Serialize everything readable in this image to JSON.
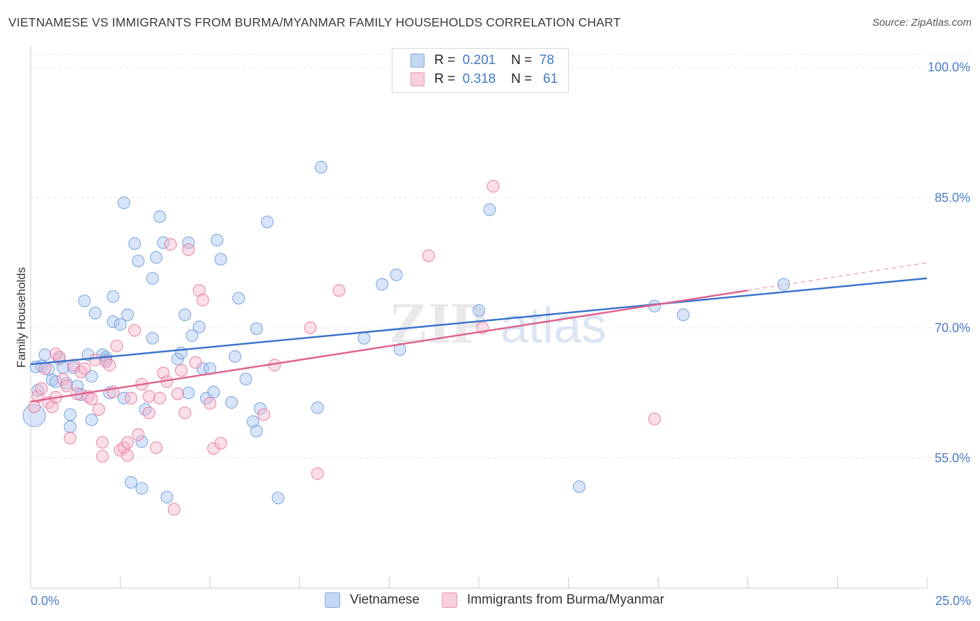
{
  "header": {
    "title": "VIETNAMESE VS IMMIGRANTS FROM BURMA/MYANMAR FAMILY HOUSEHOLDS CORRELATION CHART",
    "source": "Source: ZipAtlas.com"
  },
  "watermark": {
    "zip": "ZIP",
    "atlas": "atlas"
  },
  "legend_box": {
    "rows": [
      {
        "r_label": "R =",
        "r_value": "0.201",
        "n_label": "N =",
        "n_value": "78",
        "color": "#a9c6ef"
      },
      {
        "r_label": "R =",
        "r_value": "0.318",
        "n_label": "N =",
        "n_value": "61",
        "color": "#f5b8cb"
      }
    ]
  },
  "bottom_legend": {
    "items": [
      {
        "label": "Vietnamese",
        "color": "#a9c6ef"
      },
      {
        "label": "Immigrants from Burma/Myanmar",
        "color": "#f5b8cb"
      }
    ]
  },
  "chart_data": {
    "type": "scatter",
    "title": "VIETNAMESE VS IMMIGRANTS FROM BURMA/MYANMAR FAMILY HOUSEHOLDS CORRELATION CHART",
    "xlabel": "",
    "ylabel": "Family Households",
    "xlim": [
      0,
      25
    ],
    "ylim": [
      40,
      101.5
    ],
    "x_tick_labels": [
      "0.0%",
      "25.0%"
    ],
    "y_ticks": [
      55,
      70,
      85,
      100
    ],
    "y_tick_labels": [
      "55.0%",
      "70.0%",
      "85.0%",
      "100.0%"
    ],
    "grid": true,
    "legend_position": "top-center",
    "series": [
      {
        "name": "Vietnamese",
        "color": "#6d9ee0",
        "fill": "#a9c6ef",
        "R": 0.201,
        "N": 78,
        "trend": {
          "x": [
            0,
            25
          ],
          "y": [
            65.8,
            75.7
          ]
        },
        "points": [
          [
            0.1,
            59.9
          ],
          [
            0.2,
            62.8
          ],
          [
            0.3,
            65.6
          ],
          [
            0.4,
            66.9
          ],
          [
            0.5,
            65.2
          ],
          [
            0.6,
            64.0
          ],
          [
            0.7,
            63.8
          ],
          [
            0.8,
            66.4
          ],
          [
            0.9,
            65.4
          ],
          [
            1.0,
            63.6
          ],
          [
            1.1,
            60.0
          ],
          [
            1.1,
            58.6
          ],
          [
            1.2,
            65.4
          ],
          [
            1.3,
            63.3
          ],
          [
            1.4,
            62.3
          ],
          [
            1.5,
            73.1
          ],
          [
            1.6,
            66.9
          ],
          [
            1.7,
            59.4
          ],
          [
            1.7,
            64.4
          ],
          [
            1.8,
            71.7
          ],
          [
            2.0,
            66.9
          ],
          [
            2.1,
            66.6
          ],
          [
            2.1,
            66.3
          ],
          [
            2.2,
            62.5
          ],
          [
            2.3,
            70.7
          ],
          [
            2.3,
            73.6
          ],
          [
            2.5,
            70.4
          ],
          [
            2.6,
            84.4
          ],
          [
            2.6,
            61.9
          ],
          [
            2.7,
            71.5
          ],
          [
            2.8,
            52.2
          ],
          [
            2.9,
            79.7
          ],
          [
            3.0,
            77.7
          ],
          [
            3.1,
            51.5
          ],
          [
            3.1,
            56.9
          ],
          [
            3.2,
            60.6
          ],
          [
            3.4,
            75.7
          ],
          [
            3.4,
            68.8
          ],
          [
            3.5,
            78.1
          ],
          [
            3.6,
            82.8
          ],
          [
            3.7,
            79.8
          ],
          [
            3.8,
            50.5
          ],
          [
            4.1,
            66.4
          ],
          [
            4.2,
            67.1
          ],
          [
            4.3,
            71.5
          ],
          [
            4.4,
            62.5
          ],
          [
            4.4,
            79.8
          ],
          [
            4.5,
            69.1
          ],
          [
            4.7,
            70.1
          ],
          [
            4.8,
            65.3
          ],
          [
            4.9,
            61.9
          ],
          [
            5.0,
            65.3
          ],
          [
            5.1,
            62.6
          ],
          [
            5.2,
            80.1
          ],
          [
            5.3,
            77.9
          ],
          [
            5.6,
            61.4
          ],
          [
            5.7,
            66.7
          ],
          [
            5.8,
            73.4
          ],
          [
            6.0,
            64.1
          ],
          [
            6.2,
            59.2
          ],
          [
            6.3,
            58.1
          ],
          [
            6.3,
            69.9
          ],
          [
            6.4,
            60.7
          ],
          [
            6.6,
            82.2
          ],
          [
            6.9,
            50.4
          ],
          [
            8.0,
            60.8
          ],
          [
            8.1,
            88.5
          ],
          [
            9.3,
            68.8
          ],
          [
            9.8,
            75.0
          ],
          [
            10.2,
            76.1
          ],
          [
            10.3,
            67.5
          ],
          [
            12.5,
            72.0
          ],
          [
            12.8,
            83.6
          ],
          [
            15.3,
            51.7
          ],
          [
            17.4,
            72.5
          ],
          [
            18.2,
            71.5
          ],
          [
            21.0,
            75.0
          ],
          [
            0.15,
            65.5
          ]
        ]
      },
      {
        "name": "Immigrants from Burma/Myanmar",
        "color": "#e8789d",
        "fill": "#f5b8cb",
        "R": 0.318,
        "N": 61,
        "trend": {
          "x": [
            0,
            20
          ],
          "y": [
            61.5,
            74.3
          ]
        },
        "trend_dashed": {
          "x": [
            20,
            25
          ],
          "y": [
            74.3,
            77.5
          ]
        },
        "points": [
          [
            0.1,
            60.9
          ],
          [
            0.2,
            62.1
          ],
          [
            0.3,
            63.0
          ],
          [
            0.4,
            65.3
          ],
          [
            0.5,
            61.4
          ],
          [
            0.6,
            60.9
          ],
          [
            0.7,
            62.0
          ],
          [
            0.7,
            67.0
          ],
          [
            0.8,
            66.6
          ],
          [
            0.9,
            64.1
          ],
          [
            1.0,
            63.3
          ],
          [
            1.1,
            57.3
          ],
          [
            1.2,
            65.7
          ],
          [
            1.3,
            62.4
          ],
          [
            1.4,
            64.9
          ],
          [
            1.5,
            65.3
          ],
          [
            1.6,
            62.1
          ],
          [
            1.7,
            61.8
          ],
          [
            1.8,
            66.3
          ],
          [
            1.9,
            60.6
          ],
          [
            2.0,
            55.2
          ],
          [
            2.0,
            56.8
          ],
          [
            2.1,
            66.1
          ],
          [
            2.2,
            65.7
          ],
          [
            2.3,
            62.6
          ],
          [
            2.4,
            67.9
          ],
          [
            2.5,
            55.9
          ],
          [
            2.6,
            56.2
          ],
          [
            2.7,
            55.3
          ],
          [
            2.7,
            56.8
          ],
          [
            2.8,
            61.9
          ],
          [
            2.9,
            69.7
          ],
          [
            3.0,
            57.7
          ],
          [
            3.1,
            63.5
          ],
          [
            3.3,
            60.2
          ],
          [
            3.3,
            62.1
          ],
          [
            3.5,
            56.2
          ],
          [
            3.6,
            61.9
          ],
          [
            3.7,
            64.8
          ],
          [
            3.8,
            63.8
          ],
          [
            3.9,
            79.6
          ],
          [
            4.0,
            49.1
          ],
          [
            4.1,
            62.4
          ],
          [
            4.2,
            65.1
          ],
          [
            4.3,
            60.2
          ],
          [
            4.4,
            79.0
          ],
          [
            4.6,
            66.0
          ],
          [
            4.7,
            74.3
          ],
          [
            4.8,
            73.2
          ],
          [
            5.0,
            61.3
          ],
          [
            5.1,
            56.1
          ],
          [
            5.3,
            56.7
          ],
          [
            6.5,
            60.0
          ],
          [
            6.8,
            65.7
          ],
          [
            7.8,
            70.0
          ],
          [
            8.0,
            53.2
          ],
          [
            8.6,
            74.3
          ],
          [
            11.1,
            78.3
          ],
          [
            12.6,
            70.0
          ],
          [
            12.9,
            86.3
          ],
          [
            17.4,
            59.5
          ]
        ]
      }
    ]
  }
}
